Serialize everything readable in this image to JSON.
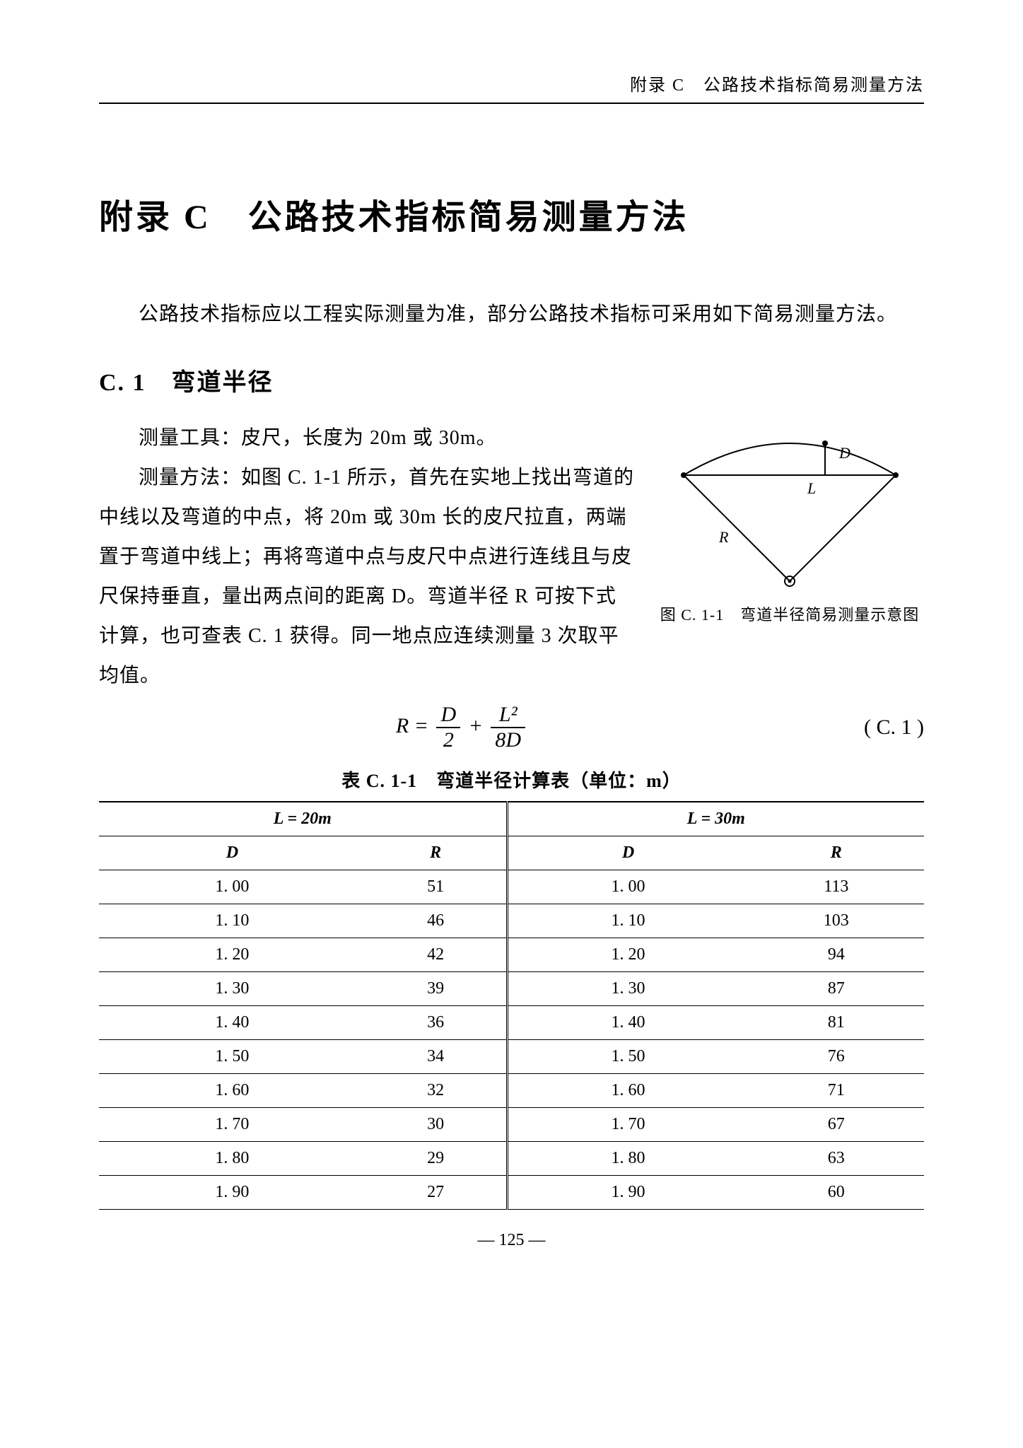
{
  "running_head": "附录 C　公路技术指标简易测量方法",
  "title": "附录 C　公路技术指标简易测量方法",
  "intro": "公路技术指标应以工程实际测量为准，部分公路技术指标可采用如下简易测量方法。",
  "section": {
    "number": "C. 1",
    "name": "弯道半径",
    "heading": "C. 1　弯道半径"
  },
  "body": {
    "p1": "测量工具：皮尺，长度为 20m 或 30m。",
    "p2": "测量方法：如图 C. 1-1 所示，首先在实地上找出弯道的中线以及弯道的中点，将 20m 或 30m 长的皮尺拉直，两端置于弯道中线上；再将弯道中点与皮尺中点进行连线且与皮尺保持垂直，量出两点间的距离 D。弯道半径 R 可按下式计算，也可查表 C. 1 获得。同一地点应连续测量 3 次取平均值。"
  },
  "figure": {
    "caption": "图 C. 1-1　弯道半径简易测量示意图",
    "label_D": "D",
    "label_L": "L",
    "label_R": "R",
    "stroke": "#000000",
    "fill": "#ffffff"
  },
  "equation": {
    "lhs": "R",
    "eq": "=",
    "term1_num": "D",
    "term1_den": "2",
    "plus": "+",
    "term2_num": "L²",
    "term2_den": "8D",
    "number": "( C. 1 )"
  },
  "table": {
    "caption": "表 C. 1-1　弯道半径计算表（单位：m）",
    "header_group_left": "L = 20m",
    "header_group_right": "L = 30m",
    "col_D": "D",
    "col_R": "R",
    "rows_left": [
      [
        "1. 00",
        "51"
      ],
      [
        "1. 10",
        "46"
      ],
      [
        "1. 20",
        "42"
      ],
      [
        "1. 30",
        "39"
      ],
      [
        "1. 40",
        "36"
      ],
      [
        "1. 50",
        "34"
      ],
      [
        "1. 60",
        "32"
      ],
      [
        "1. 70",
        "30"
      ],
      [
        "1. 80",
        "29"
      ],
      [
        "1. 90",
        "27"
      ]
    ],
    "rows_right": [
      [
        "1. 00",
        "113"
      ],
      [
        "1. 10",
        "103"
      ],
      [
        "1. 20",
        "94"
      ],
      [
        "1. 30",
        "87"
      ],
      [
        "1. 40",
        "81"
      ],
      [
        "1. 50",
        "76"
      ],
      [
        "1. 60",
        "71"
      ],
      [
        "1. 70",
        "67"
      ],
      [
        "1. 80",
        "63"
      ],
      [
        "1. 90",
        "60"
      ]
    ]
  },
  "page_number": "— 125 —"
}
